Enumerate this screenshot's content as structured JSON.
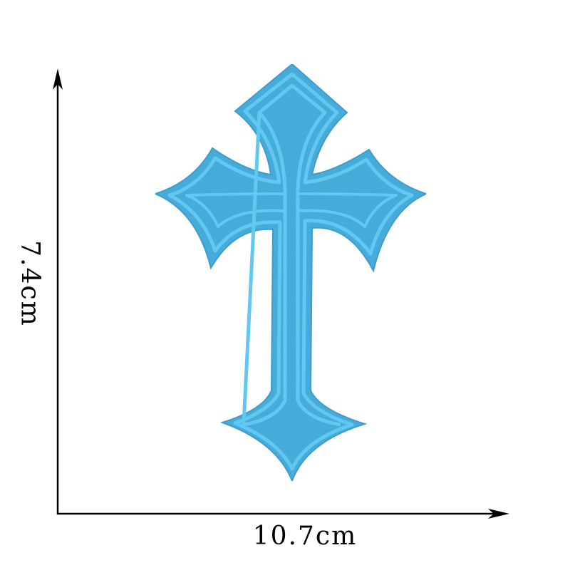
{
  "dimensions": {
    "width_label": "10.7cm",
    "height_label": "7.4cm"
  },
  "colors": {
    "patch_fill": "#3aa8d8",
    "patch_stitch": "#62c8f2",
    "patch_shadow": "#2a93c2",
    "arrow": "#000000",
    "background": "#ffffff"
  },
  "subject": "cross-patch"
}
